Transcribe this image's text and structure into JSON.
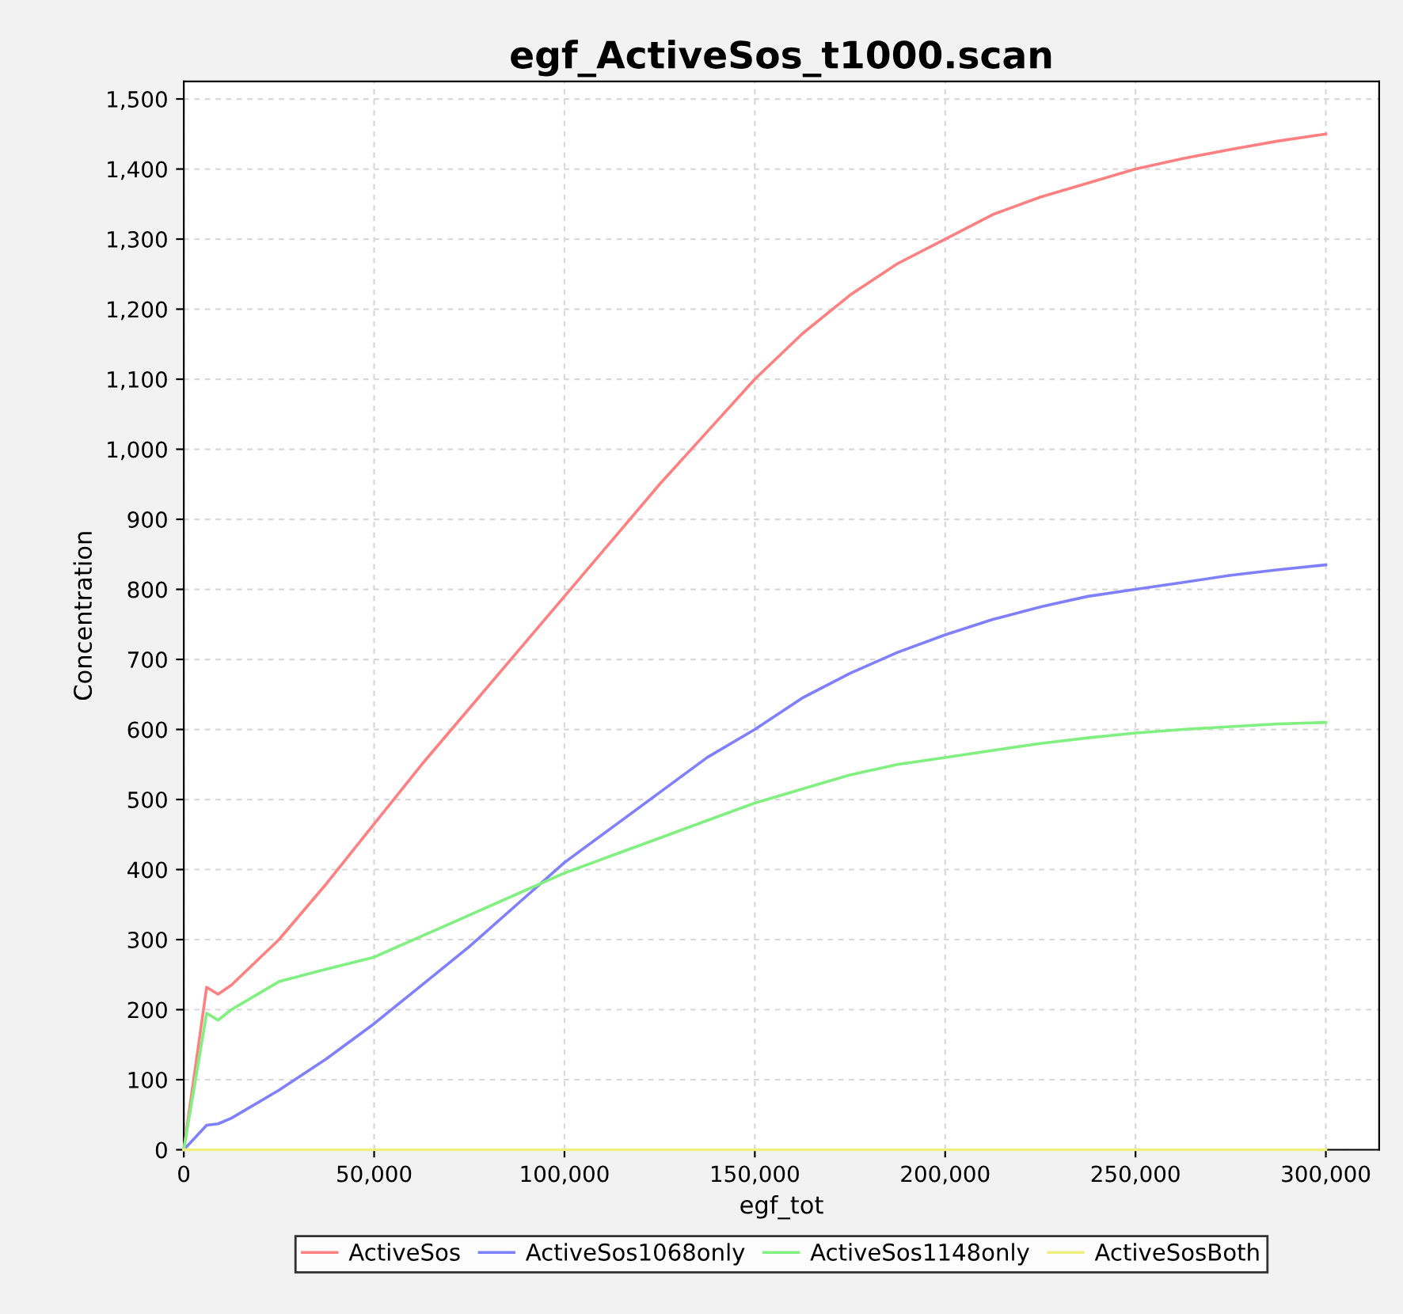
{
  "chart_data": {
    "type": "line",
    "title": "egf_ActiveSos_t1000.scan",
    "xlabel": "egf_tot",
    "ylabel": "Concentration",
    "x": [
      0,
      6000,
      9000,
      12500,
      25000,
      37500,
      50000,
      62500,
      75000,
      87500,
      100000,
      112500,
      125000,
      137500,
      150000,
      162500,
      175000,
      187500,
      200000,
      212500,
      225000,
      237500,
      250000,
      262500,
      275000,
      287500,
      300000
    ],
    "series": [
      {
        "name": "ActiveSos",
        "color": "#ff8080",
        "values": [
          0,
          232,
          222,
          235,
          300,
          380,
          465,
          550,
          630,
          710,
          790,
          870,
          950,
          1025,
          1100,
          1165,
          1220,
          1265,
          1300,
          1335,
          1360,
          1380,
          1400,
          1415,
          1428,
          1440,
          1450
        ]
      },
      {
        "name": "ActiveSos1068only",
        "color": "#8080ff",
        "values": [
          0,
          35,
          37,
          45,
          85,
          130,
          180,
          235,
          290,
          350,
          410,
          460,
          510,
          560,
          600,
          645,
          680,
          710,
          735,
          757,
          775,
          790,
          800,
          810,
          820,
          828,
          835
        ]
      },
      {
        "name": "ActiveSos1148only",
        "color": "#80f080",
        "values": [
          0,
          195,
          185,
          200,
          240,
          258,
          275,
          305,
          335,
          365,
          395,
          420,
          445,
          470,
          495,
          515,
          535,
          550,
          560,
          570,
          580,
          588,
          595,
          600,
          604,
          608,
          610
        ]
      },
      {
        "name": "ActiveSosBoth",
        "color": "#f0f080",
        "x": [
          0,
          300000
        ],
        "values": [
          0,
          0
        ]
      }
    ],
    "xlim": [
      0,
      314000
    ],
    "xticks": [
      0,
      {
        "value": 50000,
        "label": "50,000"
      },
      {
        "value": 100000,
        "label": "100,000"
      },
      {
        "value": 150000,
        "label": "150,000"
      },
      {
        "value": 200000,
        "label": "200,000"
      },
      {
        "value": 250000,
        "label": "250,000"
      },
      {
        "value": 300000,
        "label": "300,000"
      }
    ],
    "ylim": [
      0,
      1525
    ],
    "yticks": [
      0,
      100,
      200,
      300,
      400,
      500,
      600,
      700,
      800,
      900,
      {
        "value": 1000,
        "label": "1,000"
      },
      {
        "value": 1100,
        "label": "1,100"
      },
      {
        "value": 1200,
        "label": "1,200"
      },
      {
        "value": 1300,
        "label": "1,300"
      },
      {
        "value": 1400,
        "label": "1,400"
      },
      {
        "value": 1500,
        "label": "1,500"
      }
    ],
    "grid": true,
    "legend": "bottom",
    "marker": "none",
    "line_style": "solid"
  }
}
